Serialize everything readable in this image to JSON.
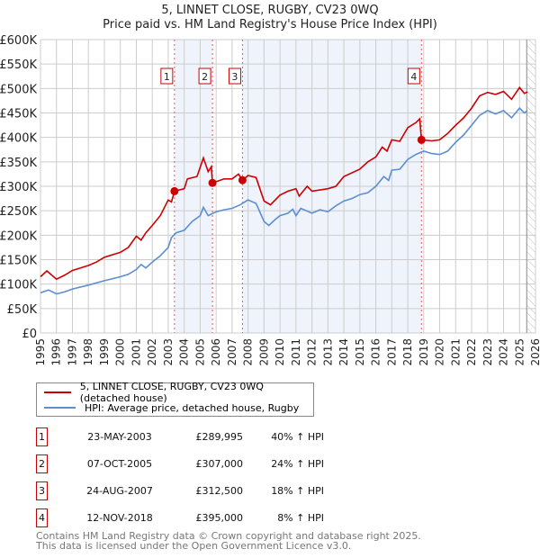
{
  "title_line1": "5, LINNET CLOSE, RUGBY, CV23 0WQ",
  "title_line2": "Price paid vs. HM Land Registry's House Price Index (HPI)",
  "legend": [
    {
      "label": "5, LINNET CLOSE, RUGBY, CV23 0WQ (detached house)",
      "color": "#cc0000"
    },
    {
      "label": "HPI: Average price, detached house, Rugby",
      "color": "#5b8fd0"
    }
  ],
  "transactions": [
    {
      "num": "1",
      "date": "23-MAY-2003",
      "price": "£289,995",
      "hpi": "40% ↑ HPI"
    },
    {
      "num": "2",
      "date": "07-OCT-2005",
      "price": "£307,000",
      "hpi": "24% ↑ HPI"
    },
    {
      "num": "3",
      "date": "24-AUG-2007",
      "price": "£312,500",
      "hpi": "18% ↑ HPI"
    },
    {
      "num": "4",
      "date": "12-NOV-2018",
      "price": "£395,000",
      "hpi": "8% ↑ HPI"
    }
  ],
  "footer_line1": "Contains HM Land Registry data © Crown copyright and database right 2025.",
  "footer_line2": "This data is licensed under the Open Government Licence v3.0.",
  "chart_data": {
    "type": "line",
    "xlim": [
      1995,
      2026
    ],
    "ylim": [
      0,
      600000
    ],
    "x_ticks": [
      "1995",
      "1996",
      "1997",
      "1998",
      "1999",
      "2000",
      "2001",
      "2002",
      "2003",
      "2004",
      "2005",
      "2006",
      "2007",
      "2008",
      "2009",
      "2010",
      "2011",
      "2012",
      "2013",
      "2014",
      "2015",
      "2016",
      "2017",
      "2018",
      "2019",
      "2020",
      "2021",
      "2022",
      "2023",
      "2024",
      "2025",
      "2026"
    ],
    "y_ticks": [
      {
        "v": 0,
        "label": "£0"
      },
      {
        "v": 50000,
        "label": "£50K"
      },
      {
        "v": 100000,
        "label": "£100K"
      },
      {
        "v": 150000,
        "label": "£150K"
      },
      {
        "v": 200000,
        "label": "£200K"
      },
      {
        "v": 250000,
        "label": "£250K"
      },
      {
        "v": 300000,
        "label": "£300K"
      },
      {
        "v": 350000,
        "label": "£350K"
      },
      {
        "v": 400000,
        "label": "£400K"
      },
      {
        "v": 450000,
        "label": "£450K"
      },
      {
        "v": 500000,
        "label": "£500K"
      },
      {
        "v": 550000,
        "label": "£550K"
      },
      {
        "v": 600000,
        "label": "£600K"
      }
    ],
    "grid": true,
    "shaded_ranges": [
      [
        2003.39,
        2005.77
      ],
      [
        2007.65,
        2018.86
      ]
    ],
    "future_hatch_from": 2025.45,
    "sales": [
      {
        "label": "1",
        "x": 2003.39,
        "y": 289995
      },
      {
        "label": "2",
        "x": 2005.77,
        "y": 307000
      },
      {
        "label": "3",
        "x": 2007.65,
        "y": 312500
      },
      {
        "label": "4",
        "x": 2018.86,
        "y": 395000
      }
    ],
    "series": [
      {
        "name": "5, LINNET CLOSE, RUGBY, CV23 0WQ (detached house)",
        "color": "#cc0000",
        "points": [
          [
            1995,
            115
          ],
          [
            1995.4,
            127
          ],
          [
            1996,
            110
          ],
          [
            1996.5,
            118
          ],
          [
            1997,
            128
          ],
          [
            1998,
            138
          ],
          [
            1998.5,
            145
          ],
          [
            1999,
            155
          ],
          [
            2000,
            165
          ],
          [
            2000.5,
            175
          ],
          [
            2001,
            198
          ],
          [
            2001.3,
            190
          ],
          [
            2001.6,
            205
          ],
          [
            2002,
            220
          ],
          [
            2002.5,
            240
          ],
          [
            2003,
            272
          ],
          [
            2003.2,
            268
          ],
          [
            2003.39,
            290
          ],
          [
            2004,
            295
          ],
          [
            2004.2,
            315
          ],
          [
            2004.8,
            320
          ],
          [
            2005.2,
            358
          ],
          [
            2005.5,
            330
          ],
          [
            2005.7,
            340
          ],
          [
            2005.77,
            307
          ],
          [
            2006.5,
            315
          ],
          [
            2007,
            315
          ],
          [
            2007.4,
            325
          ],
          [
            2007.65,
            312.5
          ],
          [
            2008,
            322
          ],
          [
            2008.5,
            318
          ],
          [
            2009,
            270
          ],
          [
            2009.4,
            262
          ],
          [
            2010,
            282
          ],
          [
            2010.5,
            290
          ],
          [
            2011,
            295
          ],
          [
            2011.2,
            280
          ],
          [
            2011.7,
            300
          ],
          [
            2012,
            290
          ],
          [
            2013,
            295
          ],
          [
            2013.5,
            300
          ],
          [
            2014,
            320
          ],
          [
            2015,
            335
          ],
          [
            2015.5,
            350
          ],
          [
            2016,
            360
          ],
          [
            2016.4,
            380
          ],
          [
            2016.7,
            372
          ],
          [
            2017,
            395
          ],
          [
            2017.5,
            392
          ],
          [
            2018,
            420
          ],
          [
            2018.5,
            430
          ],
          [
            2018.75,
            438
          ],
          [
            2018.86,
            395
          ],
          [
            2019.5,
            393
          ],
          [
            2020,
            395
          ],
          [
            2020.5,
            408
          ],
          [
            2021,
            425
          ],
          [
            2021.5,
            440
          ],
          [
            2022,
            460
          ],
          [
            2022.5,
            485
          ],
          [
            2023,
            492
          ],
          [
            2023.5,
            488
          ],
          [
            2024,
            494
          ],
          [
            2024.5,
            478
          ],
          [
            2025,
            502
          ],
          [
            2025.3,
            490
          ],
          [
            2025.5,
            493
          ]
        ]
      },
      {
        "name": "HPI: Average price, detached house, Rugby",
        "color": "#5b8fd0",
        "points": [
          [
            1995,
            82
          ],
          [
            1995.5,
            88
          ],
          [
            1996,
            80
          ],
          [
            1996.5,
            84
          ],
          [
            1997,
            90
          ],
          [
            1998,
            98
          ],
          [
            1999,
            107
          ],
          [
            2000,
            115
          ],
          [
            2000.5,
            120
          ],
          [
            2001,
            130
          ],
          [
            2001.3,
            140
          ],
          [
            2001.6,
            133
          ],
          [
            2002,
            145
          ],
          [
            2002.5,
            158
          ],
          [
            2003,
            175
          ],
          [
            2003.2,
            195
          ],
          [
            2003.5,
            205
          ],
          [
            2004,
            210
          ],
          [
            2004.5,
            228
          ],
          [
            2005,
            240
          ],
          [
            2005.2,
            257
          ],
          [
            2005.5,
            240
          ],
          [
            2006,
            248
          ],
          [
            2006.5,
            252
          ],
          [
            2007,
            255
          ],
          [
            2007.5,
            262
          ],
          [
            2008,
            272
          ],
          [
            2008.5,
            265
          ],
          [
            2009,
            228
          ],
          [
            2009.3,
            220
          ],
          [
            2009.7,
            232
          ],
          [
            2010,
            240
          ],
          [
            2010.5,
            245
          ],
          [
            2010.8,
            253
          ],
          [
            2011,
            240
          ],
          [
            2011.3,
            255
          ],
          [
            2011.8,
            248
          ],
          [
            2012,
            245
          ],
          [
            2012.5,
            252
          ],
          [
            2013,
            248
          ],
          [
            2013.5,
            260
          ],
          [
            2014,
            270
          ],
          [
            2014.5,
            275
          ],
          [
            2015,
            283
          ],
          [
            2015.5,
            287
          ],
          [
            2016,
            300
          ],
          [
            2016.5,
            320
          ],
          [
            2016.8,
            312
          ],
          [
            2017,
            333
          ],
          [
            2017.5,
            335
          ],
          [
            2018,
            355
          ],
          [
            2018.5,
            365
          ],
          [
            2019,
            372
          ],
          [
            2019.5,
            367
          ],
          [
            2020,
            365
          ],
          [
            2020.5,
            372
          ],
          [
            2021,
            390
          ],
          [
            2021.5,
            405
          ],
          [
            2022,
            425
          ],
          [
            2022.5,
            445
          ],
          [
            2023,
            455
          ],
          [
            2023.5,
            448
          ],
          [
            2024,
            455
          ],
          [
            2024.5,
            440
          ],
          [
            2025,
            460
          ],
          [
            2025.3,
            450
          ],
          [
            2025.5,
            455
          ]
        ]
      }
    ],
    "y_units_note": "series point y values in £ thousands"
  }
}
